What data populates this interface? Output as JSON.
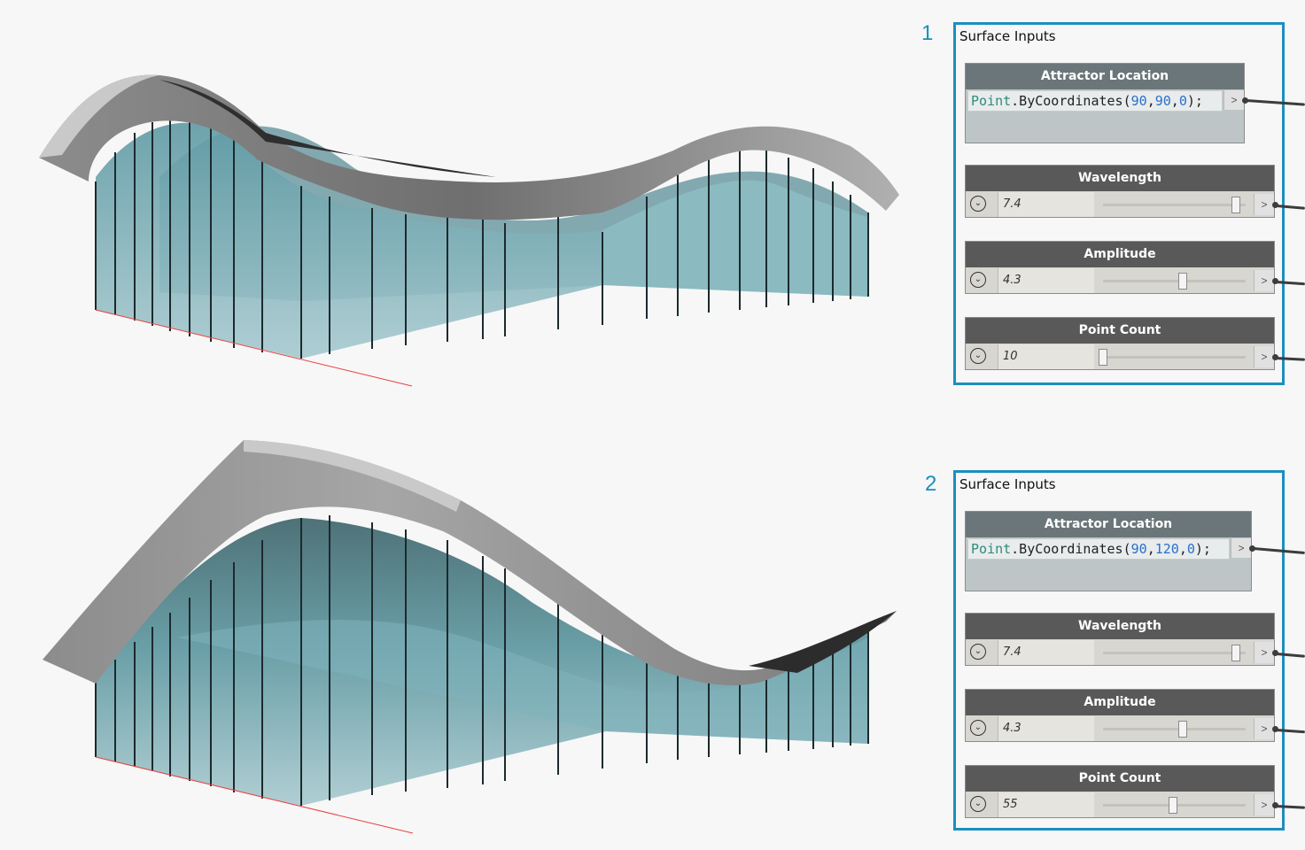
{
  "groups": [
    {
      "number": "1",
      "title": "Surface Inputs",
      "attractor": {
        "header": "Attractor Location",
        "code_class": "Point",
        "code_method": ".ByCoordinates(",
        "code_x": "90",
        "code_y": "90",
        "code_z": "0",
        "code_end": ");",
        "out_label": ">"
      },
      "sliders": [
        {
          "header": "Wavelength",
          "value": "7.4",
          "position": 0.93
        },
        {
          "header": "Amplitude",
          "value": "4.3",
          "position": 0.56
        },
        {
          "header": "Point Count",
          "value": "10",
          "position": 0.0
        }
      ]
    },
    {
      "number": "2",
      "title": "Surface Inputs",
      "attractor": {
        "header": "Attractor Location",
        "code_class": "Point",
        "code_method": ".ByCoordinates(",
        "code_x": "90",
        "code_y": "120",
        "code_z": "0",
        "code_end": ");",
        "out_label": ">"
      },
      "sliders": [
        {
          "header": "Wavelength",
          "value": "7.4",
          "position": 0.93
        },
        {
          "header": "Amplitude",
          "value": "4.3",
          "position": 0.56
        },
        {
          "header": "Point Count",
          "value": "55",
          "position": 0.49
        }
      ]
    }
  ],
  "icons": {
    "dropdown": "chevron-down-icon",
    "output": "output-port-icon"
  },
  "colors": {
    "group_border": "#1a8fbf",
    "glass": "#7fb3bb",
    "roof": "#9a9a9a",
    "code_class": "#2f8a7c",
    "code_number": "#2a6fc9"
  },
  "symbols": {
    "chevron": "⌄",
    "paren_sep": ","
  }
}
